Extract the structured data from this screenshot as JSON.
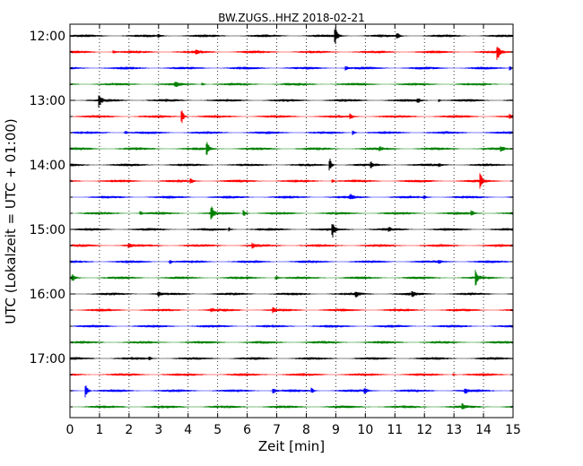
{
  "chart_data": {
    "type": "line",
    "title": "BW.ZUGS..HHZ 2018-02-21",
    "xlabel": "Zeit  [min]",
    "ylabel": "UTC (Lokalzeit = UTC + 01:00)",
    "xlim": [
      0,
      15
    ],
    "x_ticks": [
      "0",
      "1",
      "2",
      "3",
      "4",
      "5",
      "6",
      "7",
      "8",
      "9",
      "10",
      "11",
      "12",
      "13",
      "14",
      "15"
    ],
    "y_tick_labels": [
      "12:00",
      "13:00",
      "14:00",
      "15:00",
      "16:00",
      "17:00"
    ],
    "grid": true,
    "line_colors": [
      "#000000",
      "#ff0000",
      "#0000ff",
      "#008000"
    ],
    "series": [
      {
        "start": "12:00",
        "events": [
          {
            "t": 9.0,
            "amp": 1.0
          },
          {
            "t": 11.1,
            "amp": 0.35
          },
          {
            "t": 3.0,
            "amp": 0.2
          }
        ]
      },
      {
        "start": "12:15",
        "events": [
          {
            "t": 14.5,
            "amp": 1.0
          },
          {
            "t": 4.3,
            "amp": 0.3
          },
          {
            "t": 1.5,
            "amp": 0.2
          }
        ]
      },
      {
        "start": "12:30",
        "events": [
          {
            "t": 9.35,
            "amp": 0.35
          },
          {
            "t": 14.9,
            "amp": 0.3
          }
        ]
      },
      {
        "start": "12:45",
        "events": [
          {
            "t": 3.6,
            "amp": 0.3
          },
          {
            "t": 4.5,
            "amp": 0.2
          }
        ]
      },
      {
        "start": "13:00",
        "events": [
          {
            "t": 1.0,
            "amp": 1.0
          },
          {
            "t": 11.8,
            "amp": 0.3
          },
          {
            "t": 12.5,
            "amp": 0.2
          }
        ]
      },
      {
        "start": "13:15",
        "events": [
          {
            "t": 3.8,
            "amp": 1.0
          },
          {
            "t": 9.5,
            "amp": 0.35
          },
          {
            "t": 14.9,
            "amp": 0.3
          }
        ]
      },
      {
        "start": "13:30",
        "events": [
          {
            "t": 9.6,
            "amp": 0.3
          },
          {
            "t": 1.9,
            "amp": 0.2
          }
        ]
      },
      {
        "start": "13:45",
        "events": [
          {
            "t": 4.65,
            "amp": 1.0
          },
          {
            "t": 14.6,
            "amp": 0.3
          },
          {
            "t": 10.5,
            "amp": 0.2
          }
        ]
      },
      {
        "start": "14:00",
        "events": [
          {
            "t": 8.8,
            "amp": 1.0
          },
          {
            "t": 10.2,
            "amp": 0.3
          },
          {
            "t": 12.5,
            "amp": 0.25
          }
        ]
      },
      {
        "start": "14:15",
        "events": [
          {
            "t": 13.9,
            "amp": 1.0
          },
          {
            "t": 4.1,
            "amp": 0.3
          },
          {
            "t": 8.9,
            "amp": 0.2
          }
        ]
      },
      {
        "start": "14:30",
        "events": [
          {
            "t": 9.5,
            "amp": 0.3
          },
          {
            "t": 12.0,
            "amp": 0.2
          }
        ]
      },
      {
        "start": "14:45",
        "events": [
          {
            "t": 4.8,
            "amp": 1.0
          },
          {
            "t": 5.9,
            "amp": 0.5
          },
          {
            "t": 13.6,
            "amp": 0.4
          },
          {
            "t": 2.4,
            "amp": 0.25
          }
        ]
      },
      {
        "start": "15:00",
        "events": [
          {
            "t": 8.9,
            "amp": 1.0
          },
          {
            "t": 10.8,
            "amp": 0.25
          },
          {
            "t": 5.4,
            "amp": 0.2
          }
        ]
      },
      {
        "start": "15:15",
        "events": [
          {
            "t": 2.0,
            "amp": 0.3
          },
          {
            "t": 6.2,
            "amp": 0.25
          }
        ]
      },
      {
        "start": "15:30",
        "events": [
          {
            "t": 3.4,
            "amp": 0.25
          },
          {
            "t": 12.5,
            "amp": 0.2
          }
        ]
      },
      {
        "start": "15:45",
        "events": [
          {
            "t": 0.1,
            "amp": 0.45
          },
          {
            "t": 13.75,
            "amp": 1.0
          },
          {
            "t": 7.0,
            "amp": 0.25
          }
        ]
      },
      {
        "start": "16:00",
        "events": [
          {
            "t": 3.0,
            "amp": 0.35
          },
          {
            "t": 9.7,
            "amp": 0.35
          },
          {
            "t": 11.6,
            "amp": 0.3
          }
        ]
      },
      {
        "start": "16:15",
        "events": [
          {
            "t": 6.9,
            "amp": 0.3
          },
          {
            "t": 4.8,
            "amp": 0.2
          }
        ]
      },
      {
        "start": "16:30",
        "events": []
      },
      {
        "start": "16:45",
        "events": []
      },
      {
        "start": "17:00",
        "events": [
          {
            "t": 2.7,
            "amp": 0.15
          }
        ]
      },
      {
        "start": "17:15",
        "events": [
          {
            "t": 13.0,
            "amp": 0.15
          }
        ]
      },
      {
        "start": "17:30",
        "events": [
          {
            "t": 0.55,
            "amp": 1.0
          },
          {
            "t": 6.9,
            "amp": 0.35
          },
          {
            "t": 8.2,
            "amp": 0.35
          },
          {
            "t": 10.0,
            "amp": 0.35
          },
          {
            "t": 13.4,
            "amp": 0.3
          }
        ]
      },
      {
        "start": "17:45",
        "events": [
          {
            "t": 13.3,
            "amp": 0.3
          }
        ]
      }
    ]
  }
}
